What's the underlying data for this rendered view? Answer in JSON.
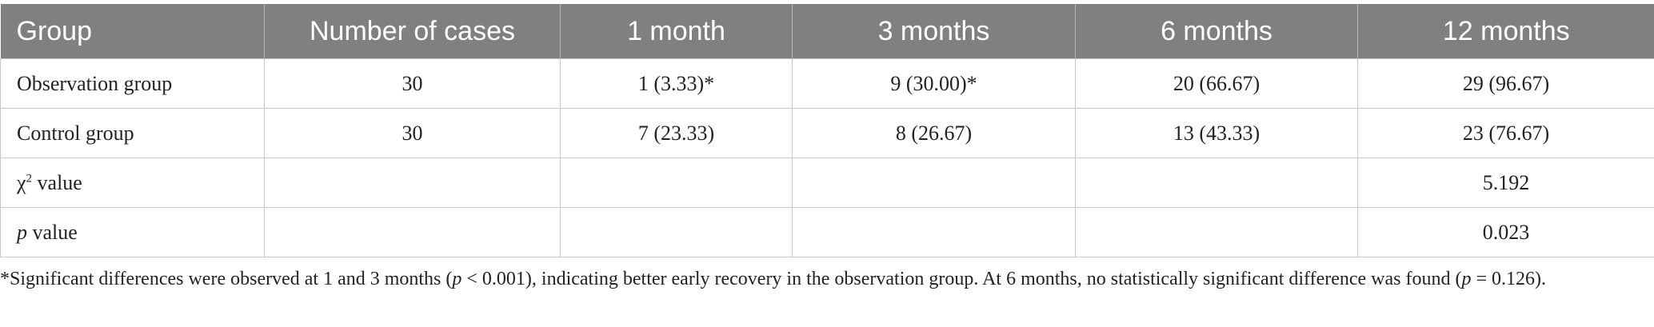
{
  "table": {
    "header": [
      "Group",
      "Number of cases",
      "1 month",
      "3 months",
      "6 months",
      "12 months"
    ],
    "rows": [
      [
        "Observation group",
        "30",
        "1 (3.33)*",
        "9 (30.00)*",
        "20 (66.67)",
        "29 (96.67)"
      ],
      [
        "Control group",
        "30",
        "7 (23.33)",
        "8 (26.67)",
        "13 (43.33)",
        "23 (76.67)"
      ],
      [
        [
          {
            "text": "χ"
          },
          {
            "text": "2",
            "style": "sup"
          },
          {
            "text": " value"
          }
        ],
        null,
        null,
        null,
        null,
        "5.192"
      ],
      [
        [
          {
            "text": "p",
            "style": "italic"
          },
          {
            "text": " value"
          }
        ],
        null,
        null,
        null,
        null,
        "0.023"
      ]
    ]
  },
  "footnote": [
    {
      "text": "*Significant differences were observed at 1 and 3 months ("
    },
    {
      "text": "p",
      "style": "italic"
    },
    {
      "text": " < 0.001), indicating better early recovery in the observation group. At 6 months, no statistically significant difference was found ("
    },
    {
      "text": "p",
      "style": "italic"
    },
    {
      "text": " = 0.126)."
    }
  ]
}
